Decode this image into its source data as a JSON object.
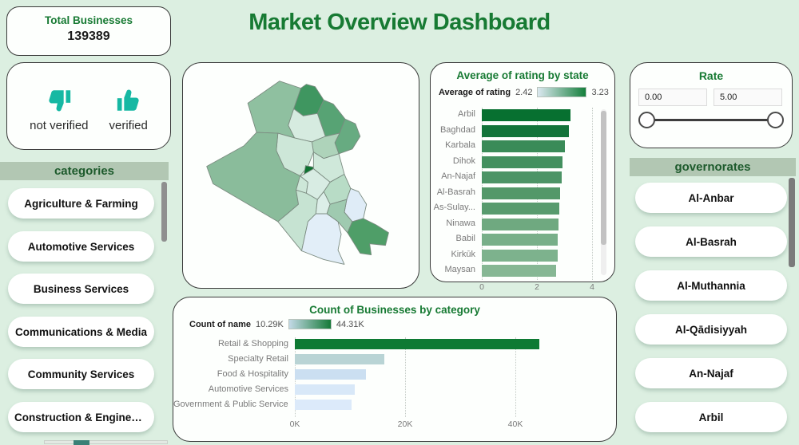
{
  "title": "Market Overview Dashboard",
  "kpi": {
    "label": "Total Businesses",
    "value": "139389"
  },
  "verification": {
    "not_verified": "not verified",
    "verified": "verified"
  },
  "categories": {
    "header": "categories",
    "items": [
      "Agriculture & Farming",
      "Automotive Services",
      "Business Services",
      "Communications & Media",
      "Community Services",
      "Construction & Engineeri..."
    ]
  },
  "governorates": {
    "header": "governorates",
    "items": [
      "Al-Anbar",
      "Al-Basrah",
      "Al-Muthannia",
      "Al-Qādisiyyah",
      "An-Najaf",
      "Arbil"
    ]
  },
  "rate_filter": {
    "title": "Rate",
    "min": "0.00",
    "max": "5.00"
  },
  "chart_data": [
    {
      "type": "bar",
      "orientation": "horizontal",
      "title": "Average of rating by state",
      "legend": {
        "label": "Average of rating",
        "min": "2.42",
        "max": "3.23",
        "gradient_from": "#dbe8f0",
        "gradient_to": "#15803c"
      },
      "categories": [
        "Arbil",
        "Baghdad",
        "Karbala",
        "Dihok",
        "An-Najaf",
        "Al-Basrah",
        "As-Sulay...",
        "Ninawa",
        "Babil",
        "Kirkūk",
        "Maysan"
      ],
      "values": [
        3.23,
        3.16,
        3.0,
        2.94,
        2.89,
        2.85,
        2.82,
        2.78,
        2.75,
        2.76,
        2.71
      ],
      "bar_colors": [
        "#077030",
        "#13743a",
        "#3a8b58",
        "#43905f",
        "#4c9466",
        "#539869",
        "#589b6e",
        "#6fa980",
        "#78af89",
        "#7db28d",
        "#86b794"
      ],
      "xlim": [
        0,
        4
      ],
      "x_ticks": [
        "0",
        "2",
        "4"
      ],
      "x_tick_values": [
        0,
        2,
        4
      ],
      "grid": true,
      "legend_position": "top"
    },
    {
      "type": "bar",
      "orientation": "horizontal",
      "title": "Count of Businesses by category",
      "legend": {
        "label": "Count of name",
        "min": "10.29K",
        "max": "44.31K",
        "gradient_from": "#c3d9e6",
        "gradient_to": "#157a38"
      },
      "categories": [
        "Retail & Shopping",
        "Specialty Retail",
        "Food & Hospitality",
        "Automotive Services",
        "Government & Public Services"
      ],
      "values": [
        44.31,
        16.3,
        12.9,
        10.9,
        10.29
      ],
      "unit": "K",
      "bar_colors": [
        "#0e7a33",
        "#b9d4d5",
        "#cbdff1",
        "#d8e8f8",
        "#dceafa"
      ],
      "xlim": [
        0,
        45
      ],
      "x_ticks": [
        "0K",
        "20K",
        "40K"
      ],
      "x_tick_values": [
        0,
        20,
        40
      ],
      "grid": true,
      "legend_position": "top"
    }
  ],
  "map": {
    "name": "iraq-choropleth",
    "regions": [
      {
        "name": "Dahuk",
        "color": "#3f9660"
      },
      {
        "name": "Arbil",
        "color": "#57a374"
      },
      {
        "name": "Mosul-plain",
        "color": "#d6ebe0"
      },
      {
        "name": "Ninawa",
        "color": "#8fc0a0"
      },
      {
        "name": "As-Sulaymaniyah",
        "color": "#67ab81"
      },
      {
        "name": "Kirkuk",
        "color": "#aed3ba"
      },
      {
        "name": "Salah-ad-Din",
        "color": "#cde7d8"
      },
      {
        "name": "Al-Anbar",
        "color": "#8abc9b"
      },
      {
        "name": "Baghdad",
        "color": "#0e7231"
      },
      {
        "name": "Diyala",
        "color": "#cfe8da"
      },
      {
        "name": "Wasit",
        "color": "#b8dcc6"
      },
      {
        "name": "Karbala",
        "color": "#cde7d8"
      },
      {
        "name": "Babil",
        "color": "#d8ece3"
      },
      {
        "name": "An-Najaf",
        "color": "#c6e3d2"
      },
      {
        "name": "Al-Qadisiyyah",
        "color": "#dceee8"
      },
      {
        "name": "Al-Muthanna",
        "color": "#e2eef8"
      },
      {
        "name": "Dhi-Qar",
        "color": "#dfecf7"
      },
      {
        "name": "Maysan",
        "color": "#9fcab0"
      },
      {
        "name": "Al-Basrah",
        "color": "#4f9e68"
      }
    ],
    "border_color": "#7b8b80"
  },
  "colors": {
    "background": "#dcefe1",
    "card_border": "#3a3a3a",
    "accent_green": "#177a33",
    "header_bar": "#b2c7b3",
    "header_text": "#1d5a2c",
    "teal_icon": "#16b8a3",
    "scrollbar_teal": "#3a8076"
  }
}
